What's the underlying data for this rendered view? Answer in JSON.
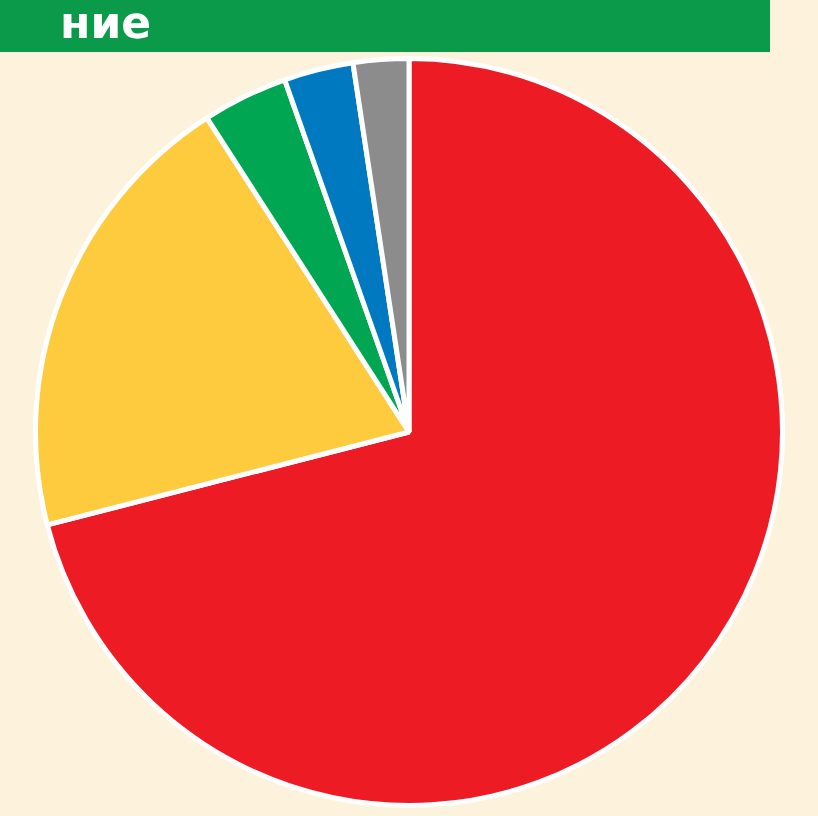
{
  "chart_data": {
    "type": "pie",
    "title": "ние",
    "categories": [
      null,
      null,
      null,
      null,
      null
    ],
    "values": [
      71.0,
      19.9,
      3.7,
      3.0,
      2.4
    ],
    "colors": [
      "#ed1c24",
      "#fecb3e",
      "#00a651",
      "#0079c1",
      "#8c8c8c"
    ],
    "legend": false
  }
}
